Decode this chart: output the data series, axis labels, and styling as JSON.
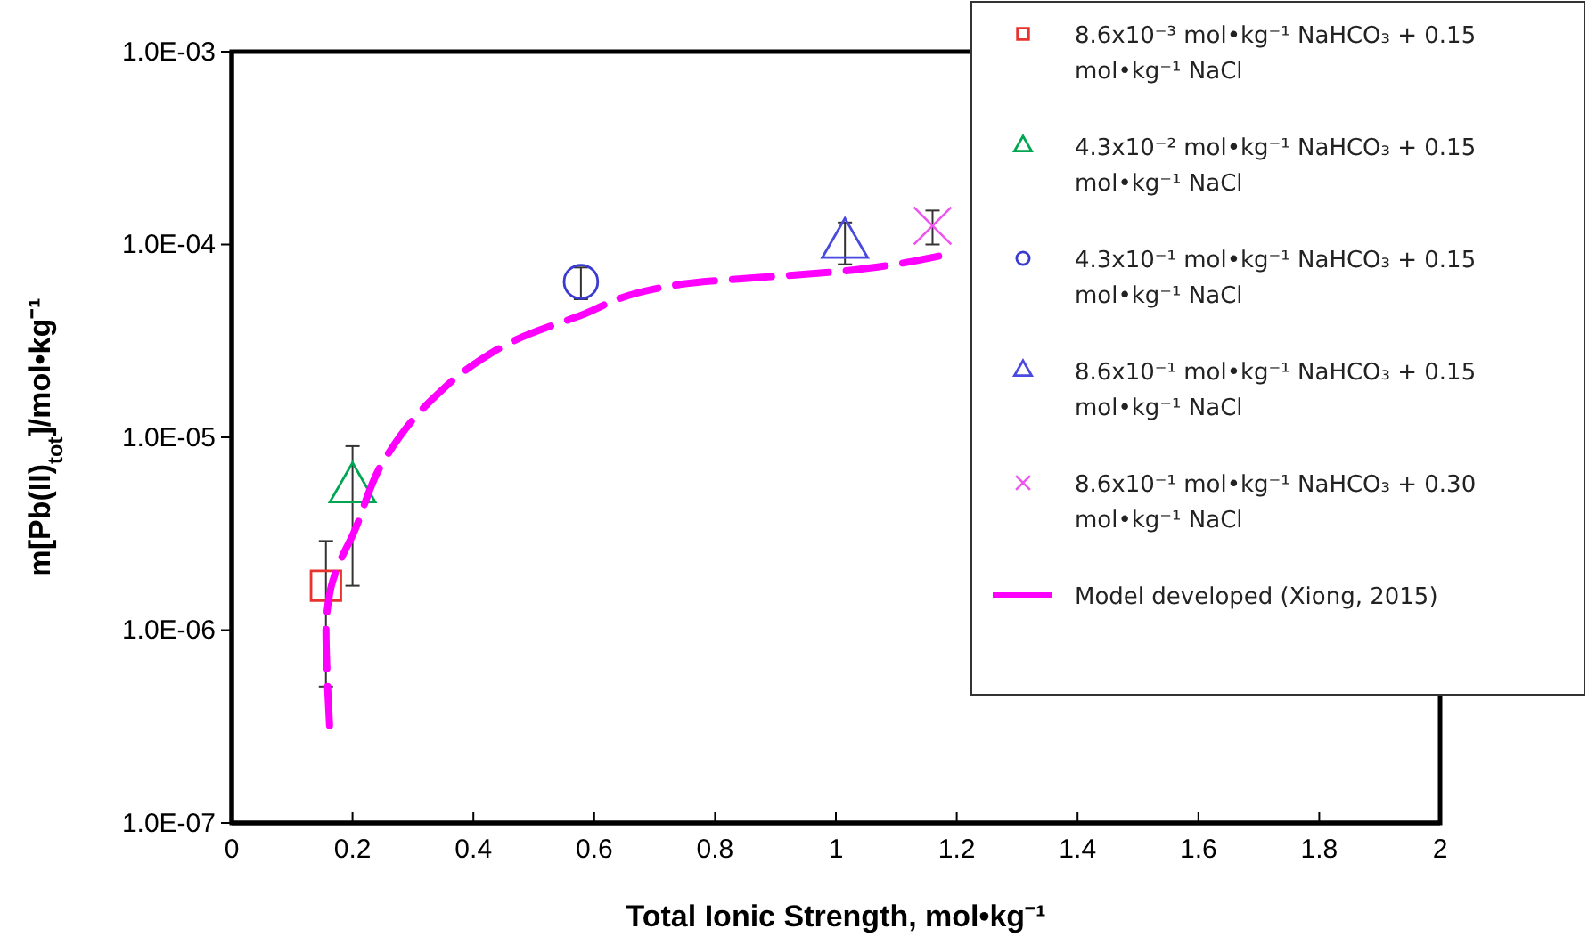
{
  "chart_data": {
    "type": "scatter",
    "xlabel": "Total Ionic Strength, mol•kg⁻¹",
    "ylabel": "m[Pb(II)$_{tot}$]/mol•kg⁻¹",
    "xlim": [
      0,
      2
    ],
    "xticks": [
      0,
      0.2,
      0.4,
      0.6,
      0.8,
      1,
      1.2,
      1.4,
      1.6,
      1.8,
      2
    ],
    "ylim": [
      1e-07,
      0.001
    ],
    "yticks": [
      {
        "value": 1e-07,
        "label": "1.0E-07"
      },
      {
        "value": 1e-06,
        "label": "1.0E-06"
      },
      {
        "value": 1e-05,
        "label": "1.0E-05"
      },
      {
        "value": 0.0001,
        "label": "1.0E-04"
      },
      {
        "value": 0.001,
        "label": "1.0E-03"
      }
    ],
    "log": "y",
    "grid": false,
    "legend": "top right",
    "series": [
      {
        "name": "8.6x10⁻³ mol•kg⁻¹ NaHCO₃ + 0.15 mol•kg⁻¹ NaCl",
        "color": "#e8332f",
        "marker": "square",
        "x": [
          0.156
        ],
        "values": [
          1.7e-06
        ],
        "errors": [
          [
            5.1e-07,
            2.9e-06
          ]
        ]
      },
      {
        "name": "4.3x10⁻² mol•kg⁻¹ NaHCO₃ + 0.15 mol•kg⁻¹ NaCl",
        "color": "#00a651",
        "marker": "triangle",
        "x": [
          0.2
        ],
        "values": [
          5.4e-06
        ],
        "errors": [
          [
            1.7e-06,
            9e-06
          ]
        ]
      },
      {
        "name": "4.3x10⁻¹ mol•kg⁻¹ NaHCO₃ + 0.15 mol•kg⁻¹ NaCl",
        "color": "#3b3bd1",
        "marker": "circle",
        "x": [
          0.578
        ],
        "values": [
          6.4e-05
        ],
        "errors": [
          [
            5.2e-05,
            7.6e-05
          ]
        ]
      },
      {
        "name": "8.6x10⁻¹ mol•kg⁻¹ NaHCO₃ + 0.15 mol•kg⁻¹ NaCl",
        "color": "#4a4ae0",
        "marker": "triangle",
        "x": [
          1.015
        ],
        "values": [
          0.0001
        ],
        "errors": [
          [
            7.9e-05,
            0.00013
          ]
        ]
      },
      {
        "name": "8.6x10⁻¹ mol•kg⁻¹ NaHCO₃ + 0.30 mol•kg⁻¹ NaCl",
        "color": "#ee55ee",
        "marker": "cross",
        "x": [
          1.16
        ],
        "values": [
          0.000125
        ],
        "errors": [
          [
            0.0001,
            0.00015
          ]
        ]
      },
      {
        "name": "Model developed (Xiong, 2015)",
        "type": "line",
        "color": "#ff00ff",
        "line_style": "dashed",
        "marker": "none",
        "x": [
          0.162,
          0.158,
          0.156,
          0.16,
          0.165,
          0.18,
          0.2,
          0.25,
          0.325,
          0.41,
          0.47,
          0.57,
          0.74,
          1.015,
          1.17
        ],
        "values": [
          3.2e-07,
          5.8e-07,
          1e-06,
          1.4e-06,
          1.7e-06,
          2.3e-06,
          3.1e-06,
          7.4e-06,
          1.5e-05,
          2.5e-05,
          3.2e-05,
          4.2e-05,
          6.2e-05,
          7.3e-05,
          8.7e-05
        ]
      }
    ]
  }
}
